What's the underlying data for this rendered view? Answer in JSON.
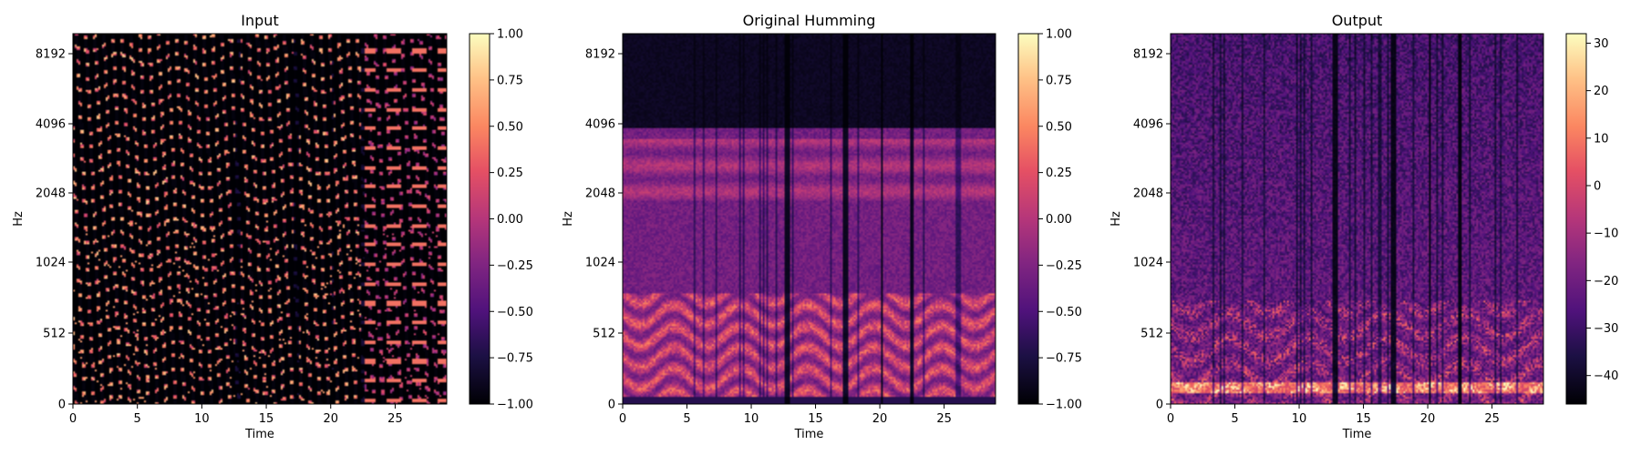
{
  "chart_data": [
    {
      "type": "heatmap",
      "title": "Input",
      "xlabel": "Time",
      "ylabel": "Hz",
      "xlim": [
        0,
        29
      ],
      "xticks": [
        "0",
        "5",
        "10",
        "15",
        "20",
        "25"
      ],
      "yscale": "log2",
      "yticks": [
        "0",
        "512",
        "1024",
        "2048",
        "4096",
        "8192"
      ],
      "colormap": "magma",
      "colorbar": {
        "min": -1.0,
        "max": 1.0,
        "ticks": [
          "1.00",
          "0.75",
          "0.50",
          "0.25",
          "0.00",
          "−0.25",
          "−0.50",
          "−0.75",
          "−1.00"
        ]
      }
    },
    {
      "type": "heatmap",
      "title": "Original Humming",
      "xlabel": "Time",
      "ylabel": "Hz",
      "xlim": [
        0,
        29
      ],
      "xticks": [
        "0",
        "5",
        "10",
        "15",
        "20",
        "25"
      ],
      "yscale": "log2",
      "yticks": [
        "0",
        "512",
        "1024",
        "2048",
        "4096",
        "8192"
      ],
      "colormap": "magma",
      "colorbar": {
        "min": -1.0,
        "max": 1.0,
        "ticks": [
          "1.00",
          "0.75",
          "0.50",
          "0.25",
          "0.00",
          "−0.25",
          "−0.50",
          "−0.75",
          "−1.00"
        ]
      }
    },
    {
      "type": "heatmap",
      "title": "Output",
      "xlabel": "Time",
      "ylabel": "Hz",
      "xlim": [
        0,
        29
      ],
      "xticks": [
        "0",
        "5",
        "10",
        "15",
        "20",
        "25"
      ],
      "yscale": "log2",
      "yticks": [
        "0",
        "512",
        "1024",
        "2048",
        "4096",
        "8192"
      ],
      "colormap": "magma",
      "colorbar": {
        "min": -46,
        "max": 32,
        "ticks": [
          "30",
          "20",
          "10",
          "0",
          "−10",
          "−20",
          "−30",
          "−40"
        ]
      }
    }
  ]
}
